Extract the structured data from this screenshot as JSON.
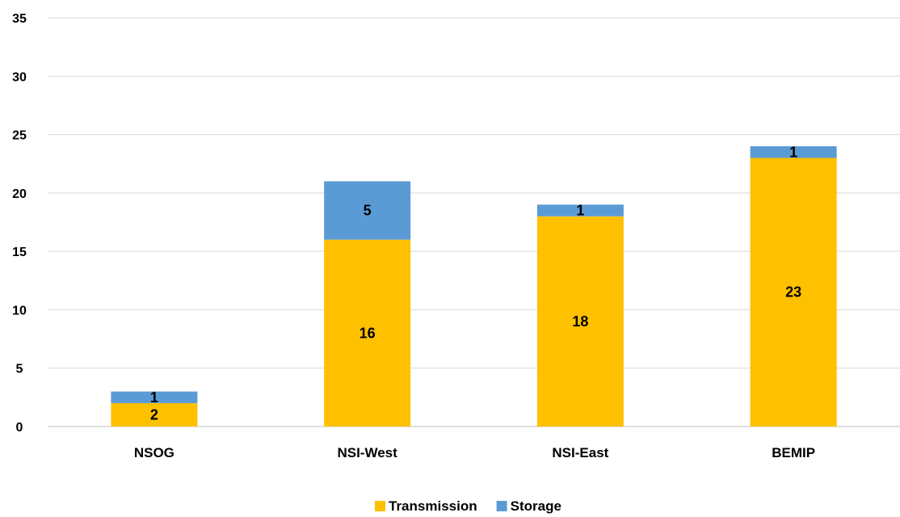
{
  "chart_data": {
    "type": "bar",
    "stacked": true,
    "title": "",
    "xlabel": "",
    "ylabel": "",
    "categories": [
      "NSOG",
      "NSI-West",
      "NSI-East",
      "BEMIP"
    ],
    "series": [
      {
        "name": "Transmission",
        "color": "#FFC000",
        "values": [
          2,
          16,
          18,
          23
        ]
      },
      {
        "name": "Storage",
        "color": "#5B9BD5",
        "values": [
          1,
          5,
          1,
          1
        ]
      }
    ],
    "ylim": [
      0,
      35
    ],
    "yticks": [
      0,
      5,
      10,
      15,
      20,
      25,
      30,
      35
    ],
    "grid": true,
    "legend_position": "bottom",
    "data_labels": true
  }
}
